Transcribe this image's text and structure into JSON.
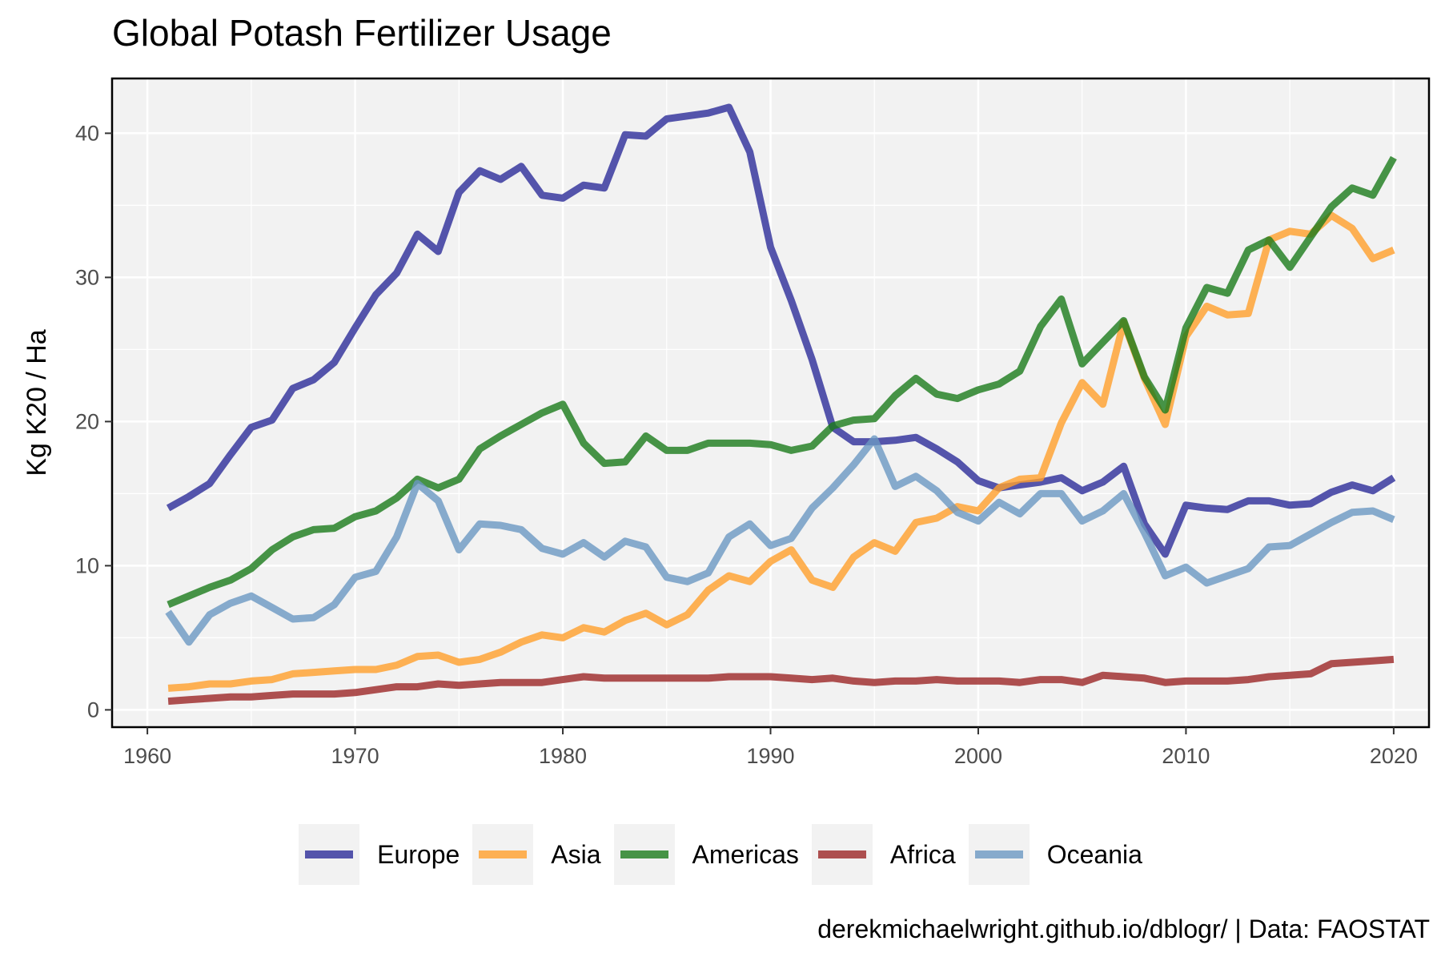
{
  "chart_data": {
    "type": "line",
    "title": "Global Potash Fertilizer Usage",
    "ylabel": "Kg K20 / Ha",
    "xlim": [
      1958.3,
      2021.7
    ],
    "ylim": [
      -1.2,
      43.8
    ],
    "x_ticks": [
      1960,
      1970,
      1980,
      1990,
      2000,
      2010,
      2020
    ],
    "y_ticks": [
      0,
      10,
      20,
      30,
      40
    ],
    "grid": true,
    "legend_position": "bottom",
    "x": [
      1961,
      1962,
      1963,
      1964,
      1965,
      1966,
      1967,
      1968,
      1969,
      1970,
      1971,
      1972,
      1973,
      1974,
      1975,
      1976,
      1977,
      1978,
      1979,
      1980,
      1981,
      1982,
      1983,
      1984,
      1985,
      1986,
      1987,
      1988,
      1989,
      1990,
      1991,
      1992,
      1993,
      1994,
      1995,
      1996,
      1997,
      1998,
      1999,
      2000,
      2001,
      2002,
      2003,
      2004,
      2005,
      2006,
      2007,
      2008,
      2009,
      2010,
      2011,
      2012,
      2013,
      2014,
      2015,
      2016,
      2017,
      2018,
      2019,
      2020
    ],
    "series": [
      {
        "name": "Europe",
        "color": "#2c2c99",
        "values": [
          14.0,
          14.8,
          15.7,
          17.7,
          19.6,
          20.1,
          22.3,
          22.9,
          24.1,
          26.5,
          28.8,
          30.3,
          33.0,
          31.8,
          35.9,
          37.4,
          36.8,
          37.7,
          35.7,
          35.5,
          36.4,
          36.2,
          39.9,
          39.8,
          41.0,
          41.2,
          41.4,
          41.8,
          38.7,
          32.1,
          28.4,
          24.3,
          19.6,
          18.6,
          18.6,
          18.7,
          18.9,
          18.1,
          17.2,
          15.9,
          15.4,
          15.6,
          15.8,
          16.1,
          15.2,
          15.8,
          16.9,
          12.9,
          10.8,
          14.2,
          14.0,
          13.9,
          14.5,
          14.5,
          14.2,
          14.3,
          15.1,
          15.6,
          15.2,
          16.1
        ]
      },
      {
        "name": "Asia",
        "color": "#ff9f2b",
        "values": [
          1.5,
          1.6,
          1.8,
          1.8,
          2.0,
          2.1,
          2.5,
          2.6,
          2.7,
          2.8,
          2.8,
          3.1,
          3.7,
          3.8,
          3.3,
          3.5,
          4.0,
          4.7,
          5.2,
          5.0,
          5.7,
          5.4,
          6.2,
          6.7,
          5.9,
          6.6,
          8.3,
          9.3,
          8.9,
          10.3,
          11.1,
          9.0,
          8.5,
          10.6,
          11.6,
          11.0,
          13.0,
          13.3,
          14.1,
          13.8,
          15.4,
          16.0,
          16.1,
          19.9,
          22.7,
          21.2,
          26.9,
          23.0,
          19.8,
          25.9,
          28.0,
          27.4,
          27.5,
          32.6,
          33.2,
          33.0,
          34.3,
          33.4,
          31.3,
          31.9
        ]
      },
      {
        "name": "Americas",
        "color": "#1a7a1a",
        "values": [
          7.3,
          7.9,
          8.5,
          9.0,
          9.8,
          11.1,
          12.0,
          12.5,
          12.6,
          13.4,
          13.8,
          14.7,
          16.0,
          15.4,
          16.0,
          18.1,
          19.0,
          19.8,
          20.6,
          21.2,
          18.5,
          17.1,
          17.2,
          19.0,
          18.0,
          18.0,
          18.5,
          18.5,
          18.5,
          18.4,
          18.0,
          18.3,
          19.7,
          20.1,
          20.2,
          21.8,
          23.0,
          21.9,
          21.6,
          22.2,
          22.6,
          23.5,
          26.6,
          28.5,
          24.0,
          25.5,
          27.0,
          23.1,
          20.8,
          26.5,
          29.3,
          28.9,
          31.9,
          32.6,
          30.7,
          32.8,
          34.9,
          36.2,
          35.7,
          38.3
        ]
      },
      {
        "name": "Africa",
        "color": "#9b2525",
        "values": [
          0.6,
          0.7,
          0.8,
          0.9,
          0.9,
          1.0,
          1.1,
          1.1,
          1.1,
          1.2,
          1.4,
          1.6,
          1.6,
          1.8,
          1.7,
          1.8,
          1.9,
          1.9,
          1.9,
          2.1,
          2.3,
          2.2,
          2.2,
          2.2,
          2.2,
          2.2,
          2.2,
          2.3,
          2.3,
          2.3,
          2.2,
          2.1,
          2.2,
          2.0,
          1.9,
          2.0,
          2.0,
          2.1,
          2.0,
          2.0,
          2.0,
          1.9,
          2.1,
          2.1,
          1.9,
          2.4,
          2.3,
          2.2,
          1.9,
          2.0,
          2.0,
          2.0,
          2.1,
          2.3,
          2.4,
          2.5,
          3.2,
          3.3,
          3.4,
          3.5
        ]
      },
      {
        "name": "Oceania",
        "color": "#6a97c2",
        "values": [
          6.8,
          4.7,
          6.6,
          7.4,
          7.9,
          7.1,
          6.3,
          6.4,
          7.3,
          9.2,
          9.6,
          12.0,
          15.7,
          14.5,
          11.1,
          12.9,
          12.8,
          12.5,
          11.2,
          10.8,
          11.6,
          10.6,
          11.7,
          11.3,
          9.2,
          8.9,
          9.5,
          12.0,
          12.9,
          11.4,
          11.9,
          14.0,
          15.4,
          17.0,
          18.8,
          15.5,
          16.2,
          15.2,
          13.7,
          13.1,
          14.4,
          13.6,
          15.0,
          15.0,
          13.1,
          13.8,
          15.0,
          12.3,
          9.3,
          9.9,
          8.8,
          9.3,
          9.8,
          11.3,
          11.4,
          12.2,
          13.0,
          13.7,
          13.8,
          13.2
        ]
      }
    ]
  },
  "caption": "derekmichaelwright.github.io/dblogr/ | Data: FAOSTAT"
}
